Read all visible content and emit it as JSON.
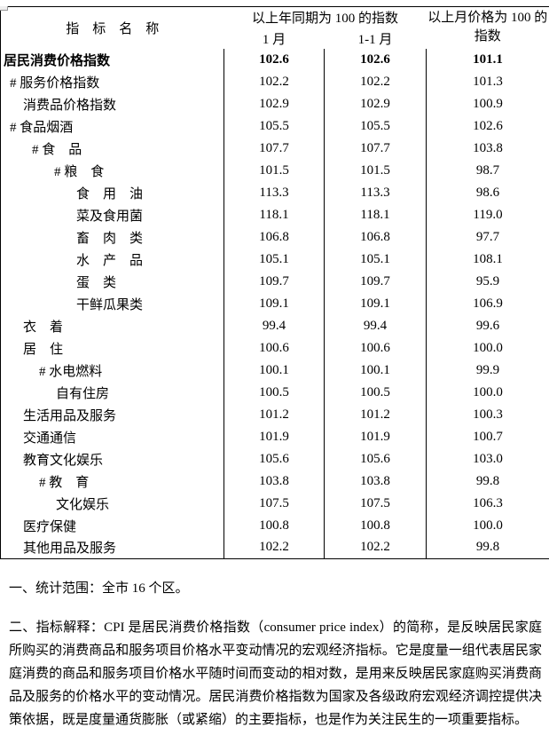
{
  "colors": {
    "background": "#ffffff",
    "text": "#000000",
    "table_border": "#000000",
    "artifact_border": "#999999"
  },
  "table": {
    "header": {
      "indicator": "指　标　名　称",
      "yoy_group": "以上年同期为 100 的指数",
      "jan": "1 月",
      "jan_cum": "1-1 月",
      "mom": "以上月价格为 100 的指数"
    },
    "rows": [
      {
        "label": "居民消费价格指数",
        "indent": 3,
        "bold": true,
        "jan": "102.6",
        "cum": "102.6",
        "mom": "101.1"
      },
      {
        "label": "# 服务价格指数",
        "indent": 10,
        "bold": false,
        "jan": "102.2",
        "cum": "102.2",
        "mom": "101.3"
      },
      {
        "label": "消费品价格指数",
        "indent": 25,
        "bold": false,
        "jan": "102.9",
        "cum": "102.9",
        "mom": "100.9"
      },
      {
        "label": "# 食品烟酒",
        "indent": 10,
        "bold": false,
        "jan": "105.5",
        "cum": "105.5",
        "mom": "102.6"
      },
      {
        "label": "# 食　品",
        "indent": 35,
        "bold": false,
        "jan": "107.7",
        "cum": "107.7",
        "mom": "103.8"
      },
      {
        "label": "# 粮　食",
        "indent": 60,
        "bold": false,
        "jan": "101.5",
        "cum": "101.5",
        "mom": "98.7"
      },
      {
        "label": "食　用　油",
        "indent": 85,
        "bold": false,
        "jan": "113.3",
        "cum": "113.3",
        "mom": "98.6"
      },
      {
        "label": "菜及食用菌",
        "indent": 85,
        "bold": false,
        "jan": "118.1",
        "cum": "118.1",
        "mom": "119.0"
      },
      {
        "label": "畜　肉　类",
        "indent": 85,
        "bold": false,
        "jan": "106.8",
        "cum": "106.8",
        "mom": "97.7"
      },
      {
        "label": "水　产　品",
        "indent": 85,
        "bold": false,
        "jan": "105.1",
        "cum": "105.1",
        "mom": "108.1"
      },
      {
        "label": "蛋　类",
        "indent": 85,
        "bold": false,
        "jan": "109.7",
        "cum": "109.7",
        "mom": "95.9"
      },
      {
        "label": "干鲜瓜果类",
        "indent": 85,
        "bold": false,
        "jan": "109.1",
        "cum": "109.1",
        "mom": "106.9"
      },
      {
        "label": "衣　着",
        "indent": 25,
        "bold": false,
        "jan": "99.4",
        "cum": "99.4",
        "mom": "99.6"
      },
      {
        "label": "居　住",
        "indent": 25,
        "bold": false,
        "jan": "100.6",
        "cum": "100.6",
        "mom": "100.0"
      },
      {
        "label": "# 水电燃料",
        "indent": 43,
        "bold": false,
        "jan": "100.1",
        "cum": "100.1",
        "mom": "99.9"
      },
      {
        "label": "自有住房",
        "indent": 62,
        "bold": false,
        "jan": "100.5",
        "cum": "100.5",
        "mom": "100.0"
      },
      {
        "label": "生活用品及服务",
        "indent": 25,
        "bold": false,
        "jan": "101.2",
        "cum": "101.2",
        "mom": "100.3"
      },
      {
        "label": "交通通信",
        "indent": 25,
        "bold": false,
        "jan": "101.9",
        "cum": "101.9",
        "mom": "100.7"
      },
      {
        "label": "教育文化娱乐",
        "indent": 25,
        "bold": false,
        "jan": "105.6",
        "cum": "105.6",
        "mom": "103.0"
      },
      {
        "label": "# 教　育",
        "indent": 43,
        "bold": false,
        "jan": "103.8",
        "cum": "103.8",
        "mom": "99.8"
      },
      {
        "label": "文化娱乐",
        "indent": 62,
        "bold": false,
        "jan": "107.5",
        "cum": "107.5",
        "mom": "106.3"
      },
      {
        "label": "医疗保健",
        "indent": 25,
        "bold": false,
        "jan": "100.8",
        "cum": "100.8",
        "mom": "100.0"
      },
      {
        "label": "其他用品及服务",
        "indent": 25,
        "bold": false,
        "jan": "102.2",
        "cum": "102.2",
        "mom": "99.8"
      }
    ]
  },
  "notes": {
    "note1": "一、统计范围：全市 16 个区。",
    "note2": "二、指标解释：CPI 是居民消费价格指数（consumer price index）的简称，是反映居民家庭所购买的消费商品和服务项目价格水平变动情况的宏观经济指标。它是度量一组代表居民家庭消费的商品和服务项目价格水平随时间而变动的相对数，是用来反映居民家庭购买消费商品及服务的价格水平的变动情况。居民消费价格指数为国家及各级政府宏观经济调控提供决策依据，既是度量通货膨胀（或紧缩）的主要指标，也是作为关注民生的一项重要指标。"
  }
}
